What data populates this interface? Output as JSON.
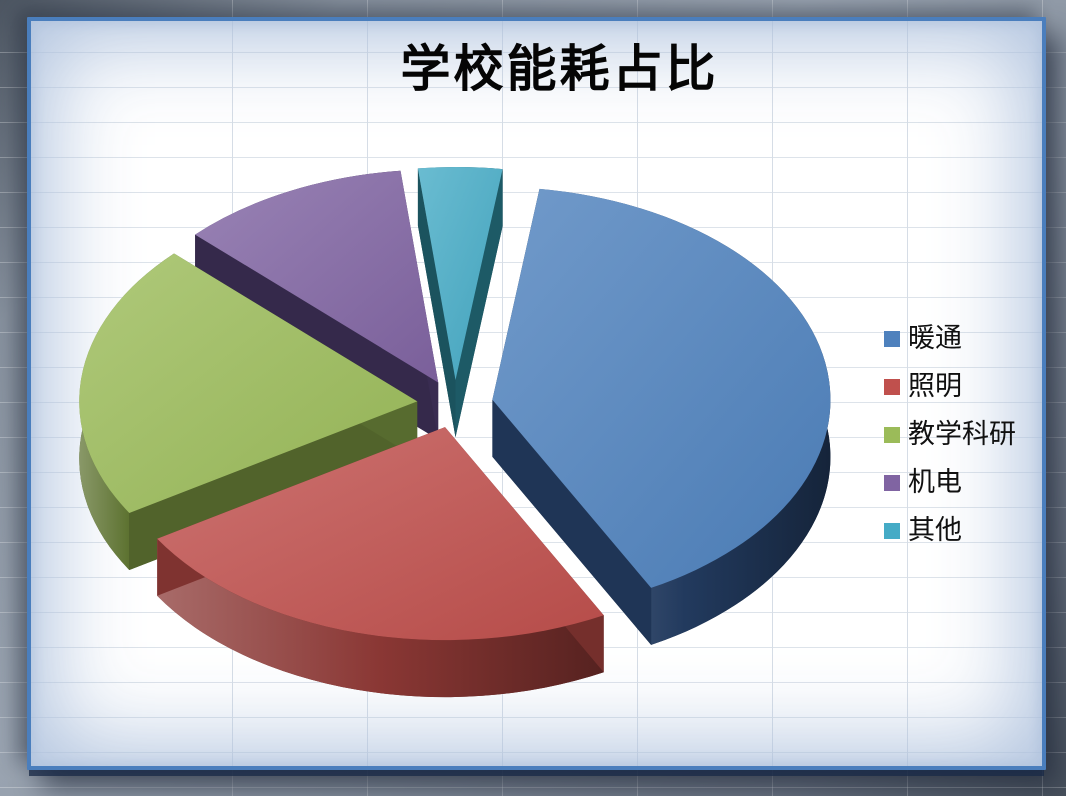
{
  "title": {
    "text": "学校能耗占比",
    "color": "#050505"
  },
  "frame": {
    "border_color": "#4a7ebd",
    "inner_glow_color": "#acc0dc",
    "outer_dark_color": "#4d5662",
    "outer_light_color": "#9aa4b1",
    "grid_line_color": "#d6dde6"
  },
  "chart_data": {
    "type": "pie",
    "style": "3d-exploded",
    "title": "学校能耗占比",
    "labels": [
      "暖通",
      "照明",
      "教学科研",
      "机电",
      "其他"
    ],
    "values": [
      40,
      24,
      21,
      11,
      4
    ],
    "values_estimated": true,
    "value_unit": "percent-of-total",
    "start_angle_deg": 8,
    "legend_position": "right",
    "data_labels_shown": false,
    "colors": {
      "top": [
        "#4e81bd",
        "#c0504d",
        "#9bbb59",
        "#8064a2",
        "#45abc6"
      ],
      "side": [
        "#223a5e",
        "#8a3734",
        "#5f7433",
        "#3e3058",
        "#20626f"
      ]
    }
  },
  "legend": {
    "items": [
      {
        "label": "暖通",
        "color": "#4e81bd"
      },
      {
        "label": "照明",
        "color": "#c0504d"
      },
      {
        "label": "教学科研",
        "color": "#9bbb59"
      },
      {
        "label": "机电",
        "color": "#8064a2"
      },
      {
        "label": "其他",
        "color": "#45abc6"
      }
    ]
  }
}
